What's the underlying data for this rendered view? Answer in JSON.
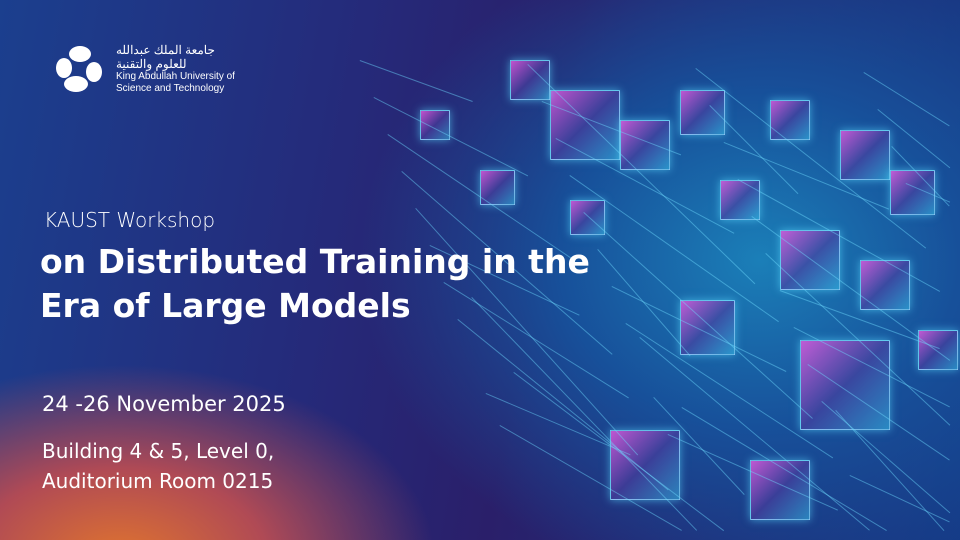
{
  "logo": {
    "arabic_line1": "جامعة الملك عبدالله",
    "arabic_line2": "للعلوم والتقنية",
    "english_line1": "King Abdullah University of",
    "english_line2": "Science and Technology"
  },
  "event": {
    "subtitle": "KAUST Workshop",
    "title_line1": "on Distributed Training in the",
    "title_line2": "Era of Large Models",
    "date": "24 -26 November 2025",
    "venue_line1": "Building 4 & 5, Level 0,",
    "venue_line2": "Auditorium Room 0215"
  },
  "colors": {
    "accent_orange": "#e0742e",
    "deep_blue": "#1b3f8e",
    "cyan": "#5fd8ff",
    "magenta": "#dc5adc"
  }
}
